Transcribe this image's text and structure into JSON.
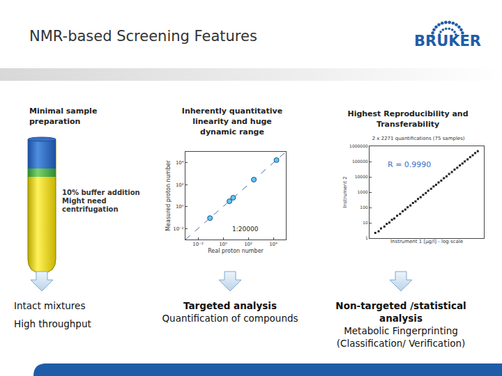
{
  "title": "NMR-based Screening Features",
  "logo": "BRUKER",
  "columns": [
    {
      "heading": [
        "Minimal sample",
        "preparation"
      ],
      "note": [
        "10% buffer addition",
        "Might need",
        "centrifugation"
      ],
      "outcome": [
        "Intact mixtures",
        "High throughput"
      ]
    },
    {
      "heading": [
        "Inherently quantitative",
        "linearity and huge",
        "dynamic range"
      ],
      "outcome_title": "Targeted analysis",
      "outcome": [
        "Quantification of compounds"
      ]
    },
    {
      "heading": [
        "Highest Reproducibility and",
        "Transferability"
      ],
      "outcome_title": "Non-targeted /statistical analysis",
      "outcome": [
        "Metabolic Fingerprinting",
        "(Classification/ Verification)"
      ]
    }
  ],
  "chart_data": [
    {
      "type": "scatter",
      "log": true,
      "grid": false,
      "xlabel": "Real proton number",
      "ylabel": "Measured proton number",
      "xlim": [
        0.001,
        100000
      ],
      "ylim": [
        0.001,
        100000
      ],
      "xticks": [
        {
          "value": 0.01,
          "label": "10⁻²"
        },
        {
          "value": 1,
          "label": "10⁰"
        },
        {
          "value": 100,
          "label": "10²"
        },
        {
          "value": 10000,
          "label": "10⁴"
        }
      ],
      "yticks": [
        {
          "value": 0.01,
          "label": "10⁻²"
        },
        {
          "value": 1,
          "label": "10⁰"
        },
        {
          "value": 100,
          "label": "10²"
        },
        {
          "value": 10000,
          "label": "10⁴"
        }
      ],
      "annotations": [
        "1:20000"
      ],
      "series": [
        {
          "type": "line",
          "line_style": "dashed",
          "color": "#4a6fa5",
          "x": [
            0.001,
            100000
          ],
          "values": [
            0.001,
            100000
          ]
        },
        {
          "type": "scatter",
          "marker": "circle",
          "color": "#5bc8f0",
          "x": [
            0.09,
            3.2,
            6.3,
            280,
            17800
          ],
          "values": [
            0.09,
            3.1,
            6.5,
            290,
            17500
          ]
        }
      ]
    },
    {
      "type": "scatter",
      "log": true,
      "grid": false,
      "tick_labels": "y",
      "title": "2 x 2271 quantifications (75 samples)",
      "xlabel": "Instrument 1 [µg/l] - log scale",
      "ylabel": "Instrument 2",
      "xlim": [
        1,
        1000000
      ],
      "ylim": [
        1,
        1000000
      ],
      "yticks": [
        1,
        10,
        100,
        1000,
        10000,
        100000,
        1000000
      ],
      "annotations": [
        "R = 0.9990"
      ],
      "series": [
        {
          "type": "scatter",
          "marker": "square",
          "color": "#222222",
          "x": [
            2,
            3,
            4,
            6,
            8,
            11,
            15,
            20,
            28,
            40,
            55,
            75,
            100,
            140,
            190,
            260,
            350,
            480,
            650,
            900,
            1200,
            1700,
            2300,
            3100,
            4200,
            5800,
            8000,
            11000,
            15000,
            21000,
            29000,
            40000,
            55000,
            75000,
            100000,
            140000,
            190000,
            260000,
            350000,
            480000
          ],
          "values": [
            2.2,
            2.8,
            4.3,
            5.7,
            8.5,
            10.4,
            15.8,
            19.1,
            29,
            38,
            57,
            73,
            104,
            136,
            197,
            251,
            362,
            470,
            668,
            880,
            1240,
            1660,
            2370,
            3040,
            4310,
            5700,
            8200,
            10800,
            15400,
            20600,
            29700,
            39300,
            56200,
            74000,
            102000,
            138000,
            194000,
            256000,
            357000,
            473000
          ]
        }
      ]
    }
  ]
}
